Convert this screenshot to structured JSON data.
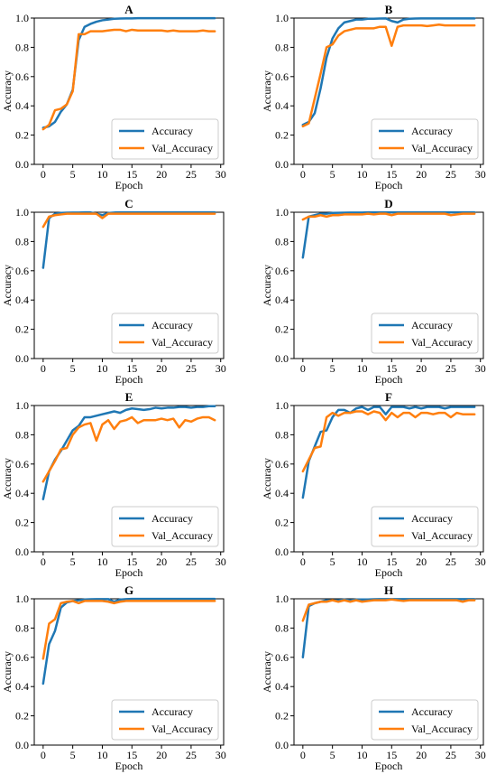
{
  "colors": {
    "accuracy": "#1f77b4",
    "val_accuracy": "#ff7f0e"
  },
  "chart_data": [
    {
      "type": "line",
      "title": "A",
      "xlabel": "Epoch",
      "ylabel": "Accuracy",
      "xlim": [
        -1.5,
        30.5
      ],
      "ylim": [
        0.0,
        1.0
      ],
      "xticks": [
        0,
        5,
        10,
        15,
        20,
        25,
        30
      ],
      "yticks": [
        0.0,
        0.2,
        0.4,
        0.6,
        0.8,
        1.0
      ],
      "legend_position": "lower right",
      "grid": false,
      "x": [
        0,
        1,
        2,
        3,
        4,
        5,
        6,
        7,
        8,
        9,
        10,
        11,
        12,
        13,
        14,
        15,
        16,
        17,
        18,
        19,
        20,
        21,
        22,
        23,
        24,
        25,
        26,
        27,
        28,
        29
      ],
      "series": [
        {
          "name": "Accuracy",
          "values": [
            0.25,
            0.26,
            0.29,
            0.36,
            0.41,
            0.51,
            0.85,
            0.94,
            0.96,
            0.975,
            0.985,
            0.99,
            0.995,
            0.997,
            0.998,
            0.998,
            0.999,
            0.999,
            0.999,
            0.999,
            0.999,
            0.999,
            0.999,
            0.999,
            0.999,
            0.999,
            0.999,
            0.999,
            0.999,
            0.999
          ]
        },
        {
          "name": "Val_Accuracy",
          "values": [
            0.24,
            0.27,
            0.37,
            0.38,
            0.41,
            0.5,
            0.89,
            0.89,
            0.91,
            0.91,
            0.91,
            0.915,
            0.92,
            0.92,
            0.91,
            0.92,
            0.915,
            0.915,
            0.915,
            0.915,
            0.915,
            0.91,
            0.915,
            0.91,
            0.91,
            0.91,
            0.91,
            0.915,
            0.91,
            0.91
          ]
        }
      ]
    },
    {
      "type": "line",
      "title": "B",
      "xlabel": "Epoch",
      "ylabel": "Accuracy",
      "xlim": [
        -1.5,
        30.5
      ],
      "ylim": [
        0.0,
        1.0
      ],
      "xticks": [
        0,
        5,
        10,
        15,
        20,
        25,
        30
      ],
      "yticks": [
        0.0,
        0.2,
        0.4,
        0.6,
        0.8,
        1.0
      ],
      "legend_position": "lower right",
      "grid": false,
      "x": [
        0,
        1,
        2,
        3,
        4,
        5,
        6,
        7,
        8,
        9,
        10,
        11,
        12,
        13,
        14,
        15,
        16,
        17,
        18,
        19,
        20,
        21,
        22,
        23,
        24,
        25,
        26,
        27,
        28,
        29
      ],
      "series": [
        {
          "name": "Accuracy",
          "values": [
            0.27,
            0.29,
            0.35,
            0.52,
            0.73,
            0.86,
            0.93,
            0.97,
            0.98,
            0.99,
            0.99,
            0.995,
            0.995,
            0.997,
            0.998,
            0.98,
            0.97,
            0.99,
            0.995,
            0.997,
            0.998,
            0.998,
            0.998,
            0.998,
            0.998,
            0.998,
            0.998,
            0.998,
            0.998,
            0.998
          ]
        },
        {
          "name": "Val_Accuracy",
          "values": [
            0.26,
            0.28,
            0.45,
            0.62,
            0.8,
            0.82,
            0.88,
            0.91,
            0.92,
            0.93,
            0.93,
            0.93,
            0.93,
            0.94,
            0.94,
            0.81,
            0.94,
            0.95,
            0.95,
            0.95,
            0.95,
            0.945,
            0.95,
            0.955,
            0.95,
            0.95,
            0.95,
            0.95,
            0.95,
            0.95
          ]
        }
      ]
    },
    {
      "type": "line",
      "title": "C",
      "xlabel": "Epoch",
      "ylabel": "Accuracy",
      "xlim": [
        -1.5,
        30.5
      ],
      "ylim": [
        0.0,
        1.0
      ],
      "xticks": [
        0,
        5,
        10,
        15,
        20,
        25,
        30
      ],
      "yticks": [
        0.0,
        0.2,
        0.4,
        0.6,
        0.8,
        1.0
      ],
      "legend_position": "lower right",
      "grid": false,
      "x": [
        0,
        1,
        2,
        3,
        4,
        5,
        6,
        7,
        8,
        9,
        10,
        11,
        12,
        13,
        14,
        15,
        16,
        17,
        18,
        19,
        20,
        21,
        22,
        23,
        24,
        25,
        26,
        27,
        28,
        29
      ],
      "series": [
        {
          "name": "Accuracy",
          "values": [
            0.62,
            0.96,
            0.99,
            0.995,
            0.997,
            0.998,
            0.998,
            0.999,
            0.999,
            0.99,
            0.98,
            0.995,
            0.998,
            0.999,
            0.999,
            0.999,
            0.999,
            0.999,
            0.999,
            0.999,
            0.999,
            0.999,
            0.999,
            0.999,
            0.999,
            0.999,
            0.999,
            0.999,
            0.999,
            0.999
          ]
        },
        {
          "name": "Val_Accuracy",
          "values": [
            0.9,
            0.97,
            0.98,
            0.985,
            0.99,
            0.99,
            0.99,
            0.99,
            0.99,
            0.99,
            0.96,
            0.99,
            0.99,
            0.99,
            0.99,
            0.99,
            0.99,
            0.99,
            0.99,
            0.99,
            0.99,
            0.99,
            0.99,
            0.99,
            0.99,
            0.99,
            0.99,
            0.99,
            0.99,
            0.99
          ]
        }
      ]
    },
    {
      "type": "line",
      "title": "D",
      "xlabel": "Epoch",
      "ylabel": "Accuracy",
      "xlim": [
        -1.5,
        30.5
      ],
      "ylim": [
        0.0,
        1.0
      ],
      "xticks": [
        0,
        5,
        10,
        15,
        20,
        25,
        30
      ],
      "yticks": [
        0.0,
        0.2,
        0.4,
        0.6,
        0.8,
        1.0
      ],
      "legend_position": "lower right",
      "grid": false,
      "x": [
        0,
        1,
        2,
        3,
        4,
        5,
        6,
        7,
        8,
        9,
        10,
        11,
        12,
        13,
        14,
        15,
        16,
        17,
        18,
        19,
        20,
        21,
        22,
        23,
        24,
        25,
        26,
        27,
        28,
        29
      ],
      "series": [
        {
          "name": "Accuracy",
          "values": [
            0.69,
            0.97,
            0.98,
            0.99,
            0.99,
            0.995,
            0.996,
            0.997,
            0.998,
            0.998,
            0.998,
            0.999,
            0.999,
            0.999,
            0.999,
            0.999,
            0.999,
            0.999,
            0.999,
            0.999,
            0.999,
            0.999,
            0.999,
            0.999,
            0.999,
            0.999,
            0.999,
            0.999,
            0.999,
            0.999
          ]
        },
        {
          "name": "Val_Accuracy",
          "values": [
            0.95,
            0.97,
            0.97,
            0.98,
            0.97,
            0.98,
            0.98,
            0.985,
            0.985,
            0.985,
            0.985,
            0.99,
            0.985,
            0.99,
            0.99,
            0.98,
            0.99,
            0.99,
            0.99,
            0.99,
            0.99,
            0.99,
            0.99,
            0.99,
            0.99,
            0.98,
            0.985,
            0.99,
            0.99,
            0.99
          ]
        }
      ]
    },
    {
      "type": "line",
      "title": "E",
      "xlabel": "Epoch",
      "ylabel": "Accuracy",
      "xlim": [
        -1.5,
        30.5
      ],
      "ylim": [
        0.0,
        1.0
      ],
      "xticks": [
        0,
        5,
        10,
        15,
        20,
        25,
        30
      ],
      "yticks": [
        0.0,
        0.2,
        0.4,
        0.6,
        0.8,
        1.0
      ],
      "legend_position": "lower right",
      "grid": false,
      "x": [
        0,
        1,
        2,
        3,
        4,
        5,
        6,
        7,
        8,
        9,
        10,
        11,
        12,
        13,
        14,
        15,
        16,
        17,
        18,
        19,
        20,
        21,
        22,
        23,
        24,
        25,
        26,
        27,
        28,
        29
      ],
      "series": [
        {
          "name": "Accuracy",
          "values": [
            0.36,
            0.55,
            0.63,
            0.69,
            0.76,
            0.83,
            0.86,
            0.92,
            0.92,
            0.93,
            0.94,
            0.95,
            0.96,
            0.95,
            0.97,
            0.98,
            0.975,
            0.97,
            0.975,
            0.985,
            0.98,
            0.985,
            0.985,
            0.99,
            0.99,
            0.985,
            0.99,
            0.99,
            0.995,
            0.995
          ]
        },
        {
          "name": "Val_Accuracy",
          "values": [
            0.48,
            0.55,
            0.62,
            0.7,
            0.71,
            0.8,
            0.85,
            0.87,
            0.88,
            0.76,
            0.87,
            0.9,
            0.84,
            0.89,
            0.9,
            0.92,
            0.88,
            0.9,
            0.9,
            0.9,
            0.91,
            0.9,
            0.91,
            0.85,
            0.9,
            0.89,
            0.91,
            0.92,
            0.92,
            0.9
          ]
        }
      ]
    },
    {
      "type": "line",
      "title": "F",
      "xlabel": "Epoch",
      "ylabel": "Accuracy",
      "xlim": [
        -1.5,
        30.5
      ],
      "ylim": [
        0.0,
        1.0
      ],
      "xticks": [
        0,
        5,
        10,
        15,
        20,
        25,
        30
      ],
      "yticks": [
        0.0,
        0.2,
        0.4,
        0.6,
        0.8,
        1.0
      ],
      "legend_position": "lower right",
      "grid": false,
      "x": [
        0,
        1,
        2,
        3,
        4,
        5,
        6,
        7,
        8,
        9,
        10,
        11,
        12,
        13,
        14,
        15,
        16,
        17,
        18,
        19,
        20,
        21,
        22,
        23,
        24,
        25,
        26,
        27,
        28,
        29
      ],
      "series": [
        {
          "name": "Accuracy",
          "values": [
            0.37,
            0.62,
            0.72,
            0.82,
            0.83,
            0.92,
            0.97,
            0.97,
            0.95,
            0.98,
            0.99,
            0.97,
            0.99,
            0.99,
            0.94,
            0.99,
            0.99,
            0.99,
            0.98,
            0.99,
            0.98,
            0.99,
            0.99,
            0.99,
            0.98,
            0.99,
            0.99,
            0.99,
            0.99,
            0.99
          ]
        },
        {
          "name": "Val_Accuracy",
          "values": [
            0.55,
            0.63,
            0.71,
            0.72,
            0.92,
            0.95,
            0.93,
            0.95,
            0.95,
            0.96,
            0.96,
            0.94,
            0.96,
            0.95,
            0.9,
            0.95,
            0.92,
            0.95,
            0.95,
            0.92,
            0.95,
            0.95,
            0.94,
            0.95,
            0.95,
            0.92,
            0.95,
            0.94,
            0.94,
            0.94
          ]
        }
      ]
    },
    {
      "type": "line",
      "title": "G",
      "xlabel": "Epoch",
      "ylabel": "Accuracy",
      "xlim": [
        -1.5,
        30.5
      ],
      "ylim": [
        0.0,
        1.0
      ],
      "xticks": [
        0,
        5,
        10,
        15,
        20,
        25,
        30
      ],
      "yticks": [
        0.0,
        0.2,
        0.4,
        0.6,
        0.8,
        1.0
      ],
      "legend_position": "lower right",
      "grid": false,
      "x": [
        0,
        1,
        2,
        3,
        4,
        5,
        6,
        7,
        8,
        9,
        10,
        11,
        12,
        13,
        14,
        15,
        16,
        17,
        18,
        19,
        20,
        21,
        22,
        23,
        24,
        25,
        26,
        27,
        28,
        29
      ],
      "series": [
        {
          "name": "Accuracy",
          "values": [
            0.42,
            0.69,
            0.78,
            0.94,
            0.975,
            0.985,
            0.99,
            0.995,
            0.997,
            0.998,
            0.998,
            0.998,
            0.98,
            0.995,
            0.998,
            0.999,
            0.999,
            0.999,
            0.999,
            0.999,
            0.999,
            0.999,
            0.999,
            0.999,
            0.999,
            0.999,
            0.999,
            0.999,
            0.999,
            0.999
          ]
        },
        {
          "name": "Val_Accuracy",
          "values": [
            0.59,
            0.83,
            0.86,
            0.97,
            0.98,
            0.985,
            0.97,
            0.985,
            0.985,
            0.985,
            0.985,
            0.98,
            0.97,
            0.98,
            0.985,
            0.985,
            0.985,
            0.985,
            0.985,
            0.985,
            0.985,
            0.985,
            0.985,
            0.985,
            0.985,
            0.985,
            0.985,
            0.985,
            0.985,
            0.985
          ]
        }
      ]
    },
    {
      "type": "line",
      "title": "H",
      "xlabel": "Epoch",
      "ylabel": "Accuracy",
      "xlim": [
        -1.5,
        30.5
      ],
      "ylim": [
        0.0,
        1.0
      ],
      "xticks": [
        0,
        5,
        10,
        15,
        20,
        25,
        30
      ],
      "yticks": [
        0.0,
        0.2,
        0.4,
        0.6,
        0.8,
        1.0
      ],
      "legend_position": "lower right",
      "grid": false,
      "x": [
        0,
        1,
        2,
        3,
        4,
        5,
        6,
        7,
        8,
        9,
        10,
        11,
        12,
        13,
        14,
        15,
        16,
        17,
        18,
        19,
        20,
        21,
        22,
        23,
        24,
        25,
        26,
        27,
        28,
        29
      ],
      "series": [
        {
          "name": "Accuracy",
          "values": [
            0.6,
            0.95,
            0.97,
            0.98,
            0.99,
            0.99,
            0.99,
            0.995,
            0.99,
            0.995,
            0.995,
            0.995,
            0.997,
            0.998,
            0.998,
            0.998,
            0.998,
            0.998,
            0.998,
            0.998,
            0.998,
            0.998,
            0.998,
            0.998,
            0.998,
            0.998,
            0.998,
            0.998,
            0.998,
            0.998
          ]
        },
        {
          "name": "Val_Accuracy",
          "values": [
            0.85,
            0.96,
            0.97,
            0.98,
            0.98,
            0.99,
            0.98,
            0.99,
            0.98,
            0.99,
            0.98,
            0.985,
            0.99,
            0.99,
            0.99,
            0.995,
            0.99,
            0.985,
            0.99,
            0.99,
            0.99,
            0.99,
            0.99,
            0.99,
            0.99,
            0.99,
            0.99,
            0.98,
            0.99,
            0.99
          ]
        }
      ]
    }
  ]
}
